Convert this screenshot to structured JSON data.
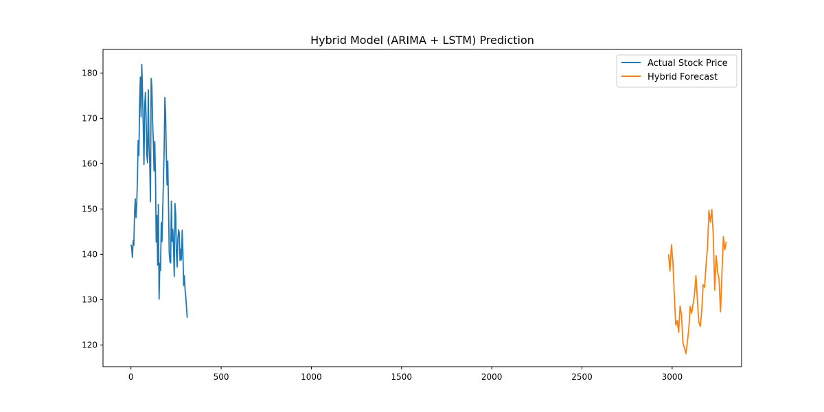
{
  "chart_data": {
    "type": "line",
    "title": "Hybrid Model (ARIMA + LSTM) Prediction",
    "xlabel": "",
    "ylabel": "",
    "xlim": [
      -155,
      3385
    ],
    "ylim": [
      115.2,
      185.2
    ],
    "xticks": [
      0,
      500,
      1000,
      1500,
      2000,
      2500,
      3000
    ],
    "yticks": [
      120,
      130,
      140,
      150,
      160,
      170,
      180
    ],
    "grid": false,
    "legend_position": "top-right",
    "series": [
      {
        "name": "Actual Stock Price",
        "color": "#1f77b4",
        "x": [
          0,
          4,
          8,
          12,
          16,
          20,
          24,
          28,
          32,
          36,
          40,
          44,
          48,
          52,
          56,
          60,
          64,
          68,
          72,
          76,
          80,
          84,
          88,
          92,
          96,
          100,
          104,
          108,
          112,
          116,
          120,
          124,
          128,
          132,
          136,
          140,
          144,
          148,
          152,
          156,
          160,
          164,
          168,
          172,
          176,
          180,
          184,
          188,
          192,
          196,
          200,
          204,
          208,
          212,
          216,
          220,
          224,
          228,
          232,
          236,
          240,
          244,
          248,
          252,
          256,
          260,
          264,
          268,
          272,
          276,
          280,
          284,
          288,
          292,
          296,
          300,
          304,
          308,
          312
        ],
        "values": [
          142.1,
          141.5,
          139.3,
          143.0,
          142.0,
          149.2,
          152.2,
          148.1,
          150.9,
          157.2,
          165.1,
          161.8,
          173.2,
          179.1,
          170.3,
          181.9,
          176.0,
          168.5,
          159.8,
          172.6,
          175.7,
          170.0,
          161.9,
          160.2,
          176.3,
          163.9,
          160.3,
          151.6,
          178.8,
          177.0,
          169.3,
          165.0,
          158.4,
          164.9,
          157.0,
          142.7,
          148.6,
          137.6,
          151.0,
          130.1,
          138.0,
          136.4,
          147.0,
          142.8,
          149.8,
          156.0,
          163.1,
          174.6,
          171.0,
          162.0,
          155.3,
          160.6,
          151.4,
          140.3,
          138.4,
          138.1,
          151.7,
          142.9,
          145.5,
          141.4,
          135.1,
          151.2,
          148.8,
          140.4,
          137.2,
          143.3,
          145.4,
          144.6,
          138.6,
          141.1,
          138.8,
          145.3,
          140.5,
          133.1,
          135.3,
          132.2,
          130.6,
          128.2,
          126.0
        ]
      },
      {
        "name": "Hybrid Forecast",
        "color": "#ff7f0e",
        "x": [
          2980,
          2988,
          2996,
          3004,
          3012,
          3020,
          3028,
          3036,
          3044,
          3052,
          3060,
          3068,
          3076,
          3084,
          3092,
          3100,
          3108,
          3116,
          3124,
          3132,
          3140,
          3148,
          3156,
          3164,
          3172,
          3180,
          3188,
          3196,
          3204,
          3212,
          3220,
          3228,
          3236,
          3244,
          3252,
          3260,
          3268,
          3276,
          3284,
          3292,
          3300
        ],
        "values": [
          140.0,
          136.3,
          142.1,
          138.4,
          131.0,
          124.4,
          125.4,
          122.8,
          128.6,
          126.5,
          120.3,
          119.4,
          118.1,
          120.5,
          123.4,
          128.5,
          127.0,
          129.0,
          131.2,
          135.3,
          129.8,
          125.0,
          124.1,
          127.6,
          133.3,
          132.7,
          137.8,
          141.5,
          149.7,
          147.1,
          149.9,
          144.2,
          132.1,
          139.7,
          136.2,
          134.5,
          127.3,
          135.7,
          143.9,
          141.0,
          142.8
        ]
      }
    ]
  }
}
